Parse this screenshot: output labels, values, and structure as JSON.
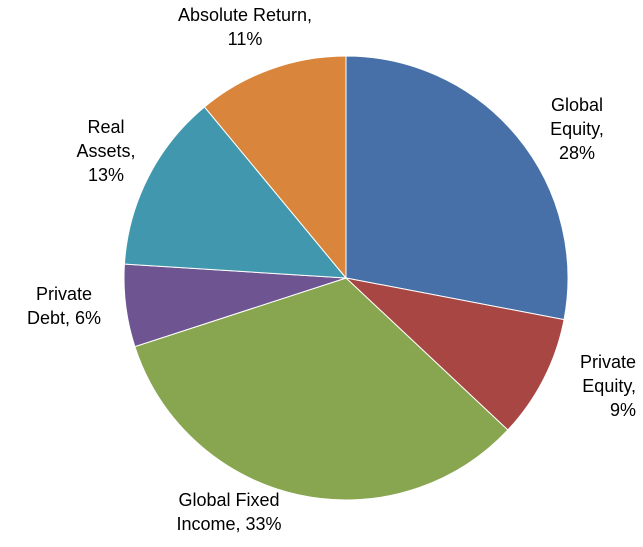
{
  "chart_data": {
    "type": "pie",
    "values": [
      28,
      9,
      33,
      6,
      13,
      11
    ],
    "value_labels": [
      "Global\nEquity,\n28%",
      "Private\nEquity,\n9%",
      "Global Fixed\nIncome, 33%",
      "Private\nDebt, 6%",
      "Real\nAssets,\n13%",
      "Absolute Return,\n11%"
    ],
    "colors": [
      "#4670a7",
      "#a84643",
      "#88a550",
      "#6e5592",
      "#4198ae",
      "#d9853b"
    ]
  }
}
